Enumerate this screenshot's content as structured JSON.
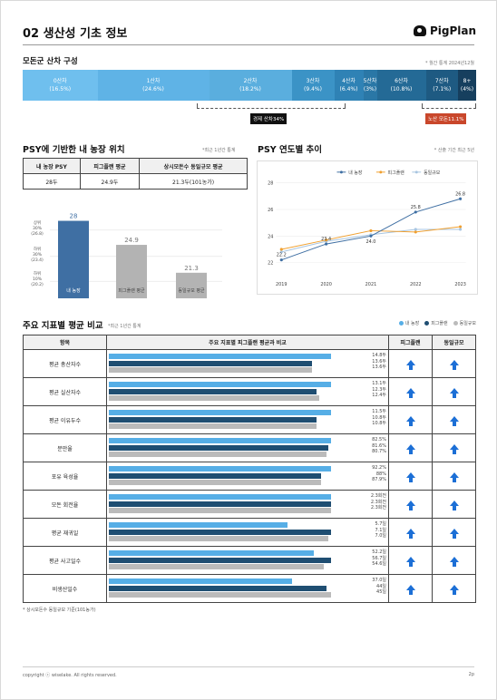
{
  "header": {
    "title": "02 생산성 기초 정보",
    "logo": "PigPlan"
  },
  "parity": {
    "title": "모돈군 산차 구성",
    "note": "* 월간 통계 2024년12월",
    "segments": [
      {
        "label": "0산차",
        "pct": "(16.5%)",
        "value": 16.5,
        "color": "#6fbfee"
      },
      {
        "label": "1산차",
        "pct": "(24.6%)",
        "value": 24.6,
        "color": "#5fb3e6"
      },
      {
        "label": "2산차",
        "pct": "(18.2%)",
        "value": 18.2,
        "color": "#5aaede"
      },
      {
        "label": "3산차",
        "pct": "(9.4%)",
        "value": 9.4,
        "color": "#3b93c6"
      },
      {
        "label": "4산차",
        "pct": "(6.4%)",
        "value": 6.4,
        "color": "#2f82b5"
      },
      {
        "label": "5산차",
        "pct": "(3%)",
        "value": 3,
        "color": "#2a77a6"
      },
      {
        "label": "6산차",
        "pct": "(10.8%)",
        "value": 10.8,
        "color": "#246a96"
      },
      {
        "label": "7산차",
        "pct": "(7.1%)",
        "value": 7.1,
        "color": "#1e5a82"
      },
      {
        "label": "8+",
        "pct": "(4%)",
        "value": 4,
        "color": "#163f5e"
      }
    ],
    "economic_label": "경제 산차34%",
    "old_label": "노산 모돈11.1%"
  },
  "psy": {
    "title": "PSY에 기반한 내 농장 위치",
    "note": "*최근 1년간 통계",
    "headers": [
      "내 농장 PSY",
      "피그플랜 평균",
      "상시모돈수 동일규모 평균"
    ],
    "values": [
      "28두",
      "24.9두",
      "21.3두(101농가)"
    ],
    "bars": [
      {
        "name": "내 농장",
        "value": 28,
        "color": "#3f6fa3"
      },
      {
        "name": "피그플랜 평균",
        "value": 24.9,
        "color": "#b3b3b3"
      },
      {
        "name": "동일규모 평균",
        "value": 21.3,
        "color": "#b3b3b3"
      }
    ],
    "ref_labels": [
      {
        "text": "상위\n30%\n(26.8)"
      },
      {
        "text": "하위\n30%\n(23.4)"
      },
      {
        "text": "하위\n10%\n(20.2)"
      }
    ]
  },
  "trend": {
    "title": "PSY 연도별 추이",
    "note": "* 산출 기간 최근 5년",
    "chart_data": {
      "type": "line",
      "x": [
        "2019",
        "2020",
        "2021",
        "2022",
        "2023"
      ],
      "ylim": [
        21,
        28
      ],
      "yticks": [
        22,
        24,
        26,
        28
      ],
      "series": [
        {
          "name": "내 농장",
          "color": "#3f6fa3",
          "values": [
            22.2,
            23.4,
            24.0,
            25.8,
            26.8
          ]
        },
        {
          "name": "피그플랜",
          "color": "#f0a030",
          "values": [
            23.0,
            23.7,
            24.4,
            24.3,
            24.7
          ]
        },
        {
          "name": "동일규모",
          "color": "#a8c5e0",
          "values": [
            22.8,
            23.6,
            24.1,
            24.5,
            24.5
          ]
        }
      ]
    }
  },
  "metrics": {
    "title": "주요 지표별 평균 비교",
    "note": "*최근 1년간 통계",
    "legend": [
      "내 농장",
      "피그플랜",
      "동일규모"
    ],
    "headers": [
      "항목",
      "주요 지표별 피그플랜 평균과 비교",
      "피그플랜",
      "동일규모"
    ],
    "colors": {
      "mine": "#56aee6",
      "pigplan": "#1f4e72",
      "same": "#bbbbbb"
    },
    "rows": [
      {
        "name": "평균 총산자수",
        "vals": [
          "14.8두",
          "13.6두",
          "13.6두"
        ],
        "fr": [
          0.92,
          0.84,
          0.84
        ]
      },
      {
        "name": "평균 실산자수",
        "vals": [
          "13.1두",
          "12.3두",
          "12.4두"
        ],
        "fr": [
          0.92,
          0.86,
          0.87
        ]
      },
      {
        "name": "평균 이유두수",
        "vals": [
          "11.5두",
          "10.8두",
          "10.8두"
        ],
        "fr": [
          0.92,
          0.86,
          0.86
        ]
      },
      {
        "name": "분만율",
        "vals": [
          "82.5%",
          "81.6%",
          "80.7%"
        ],
        "fr": [
          0.92,
          0.91,
          0.9
        ]
      },
      {
        "name": "포유 육성율",
        "vals": [
          "92.2%",
          "88%",
          "87.9%"
        ],
        "fr": [
          0.92,
          0.88,
          0.88
        ]
      },
      {
        "name": "모돈 회전율",
        "vals": [
          "2.3회전",
          "2.3회전",
          "2.3회전"
        ],
        "fr": [
          0.92,
          0.92,
          0.92
        ]
      },
      {
        "name": "평균 재귀일",
        "vals": [
          "5.7일",
          "7.1일",
          "7.0일"
        ],
        "fr": [
          0.74,
          0.92,
          0.91
        ]
      },
      {
        "name": "평균 사고일수",
        "vals": [
          "52.2일",
          "56.7일",
          "54.6일"
        ],
        "fr": [
          0.85,
          0.92,
          0.89
        ]
      },
      {
        "name": "비생산일수",
        "vals": [
          "37.0일",
          "44일",
          "45일"
        ],
        "fr": [
          0.76,
          0.9,
          0.92
        ]
      }
    ]
  },
  "footnote": "* 상시모돈수 동일규모 기준(101농가)",
  "footer": {
    "copyright": "copyright ⓒ wiselake. All rights reserved.",
    "page": "2p"
  }
}
